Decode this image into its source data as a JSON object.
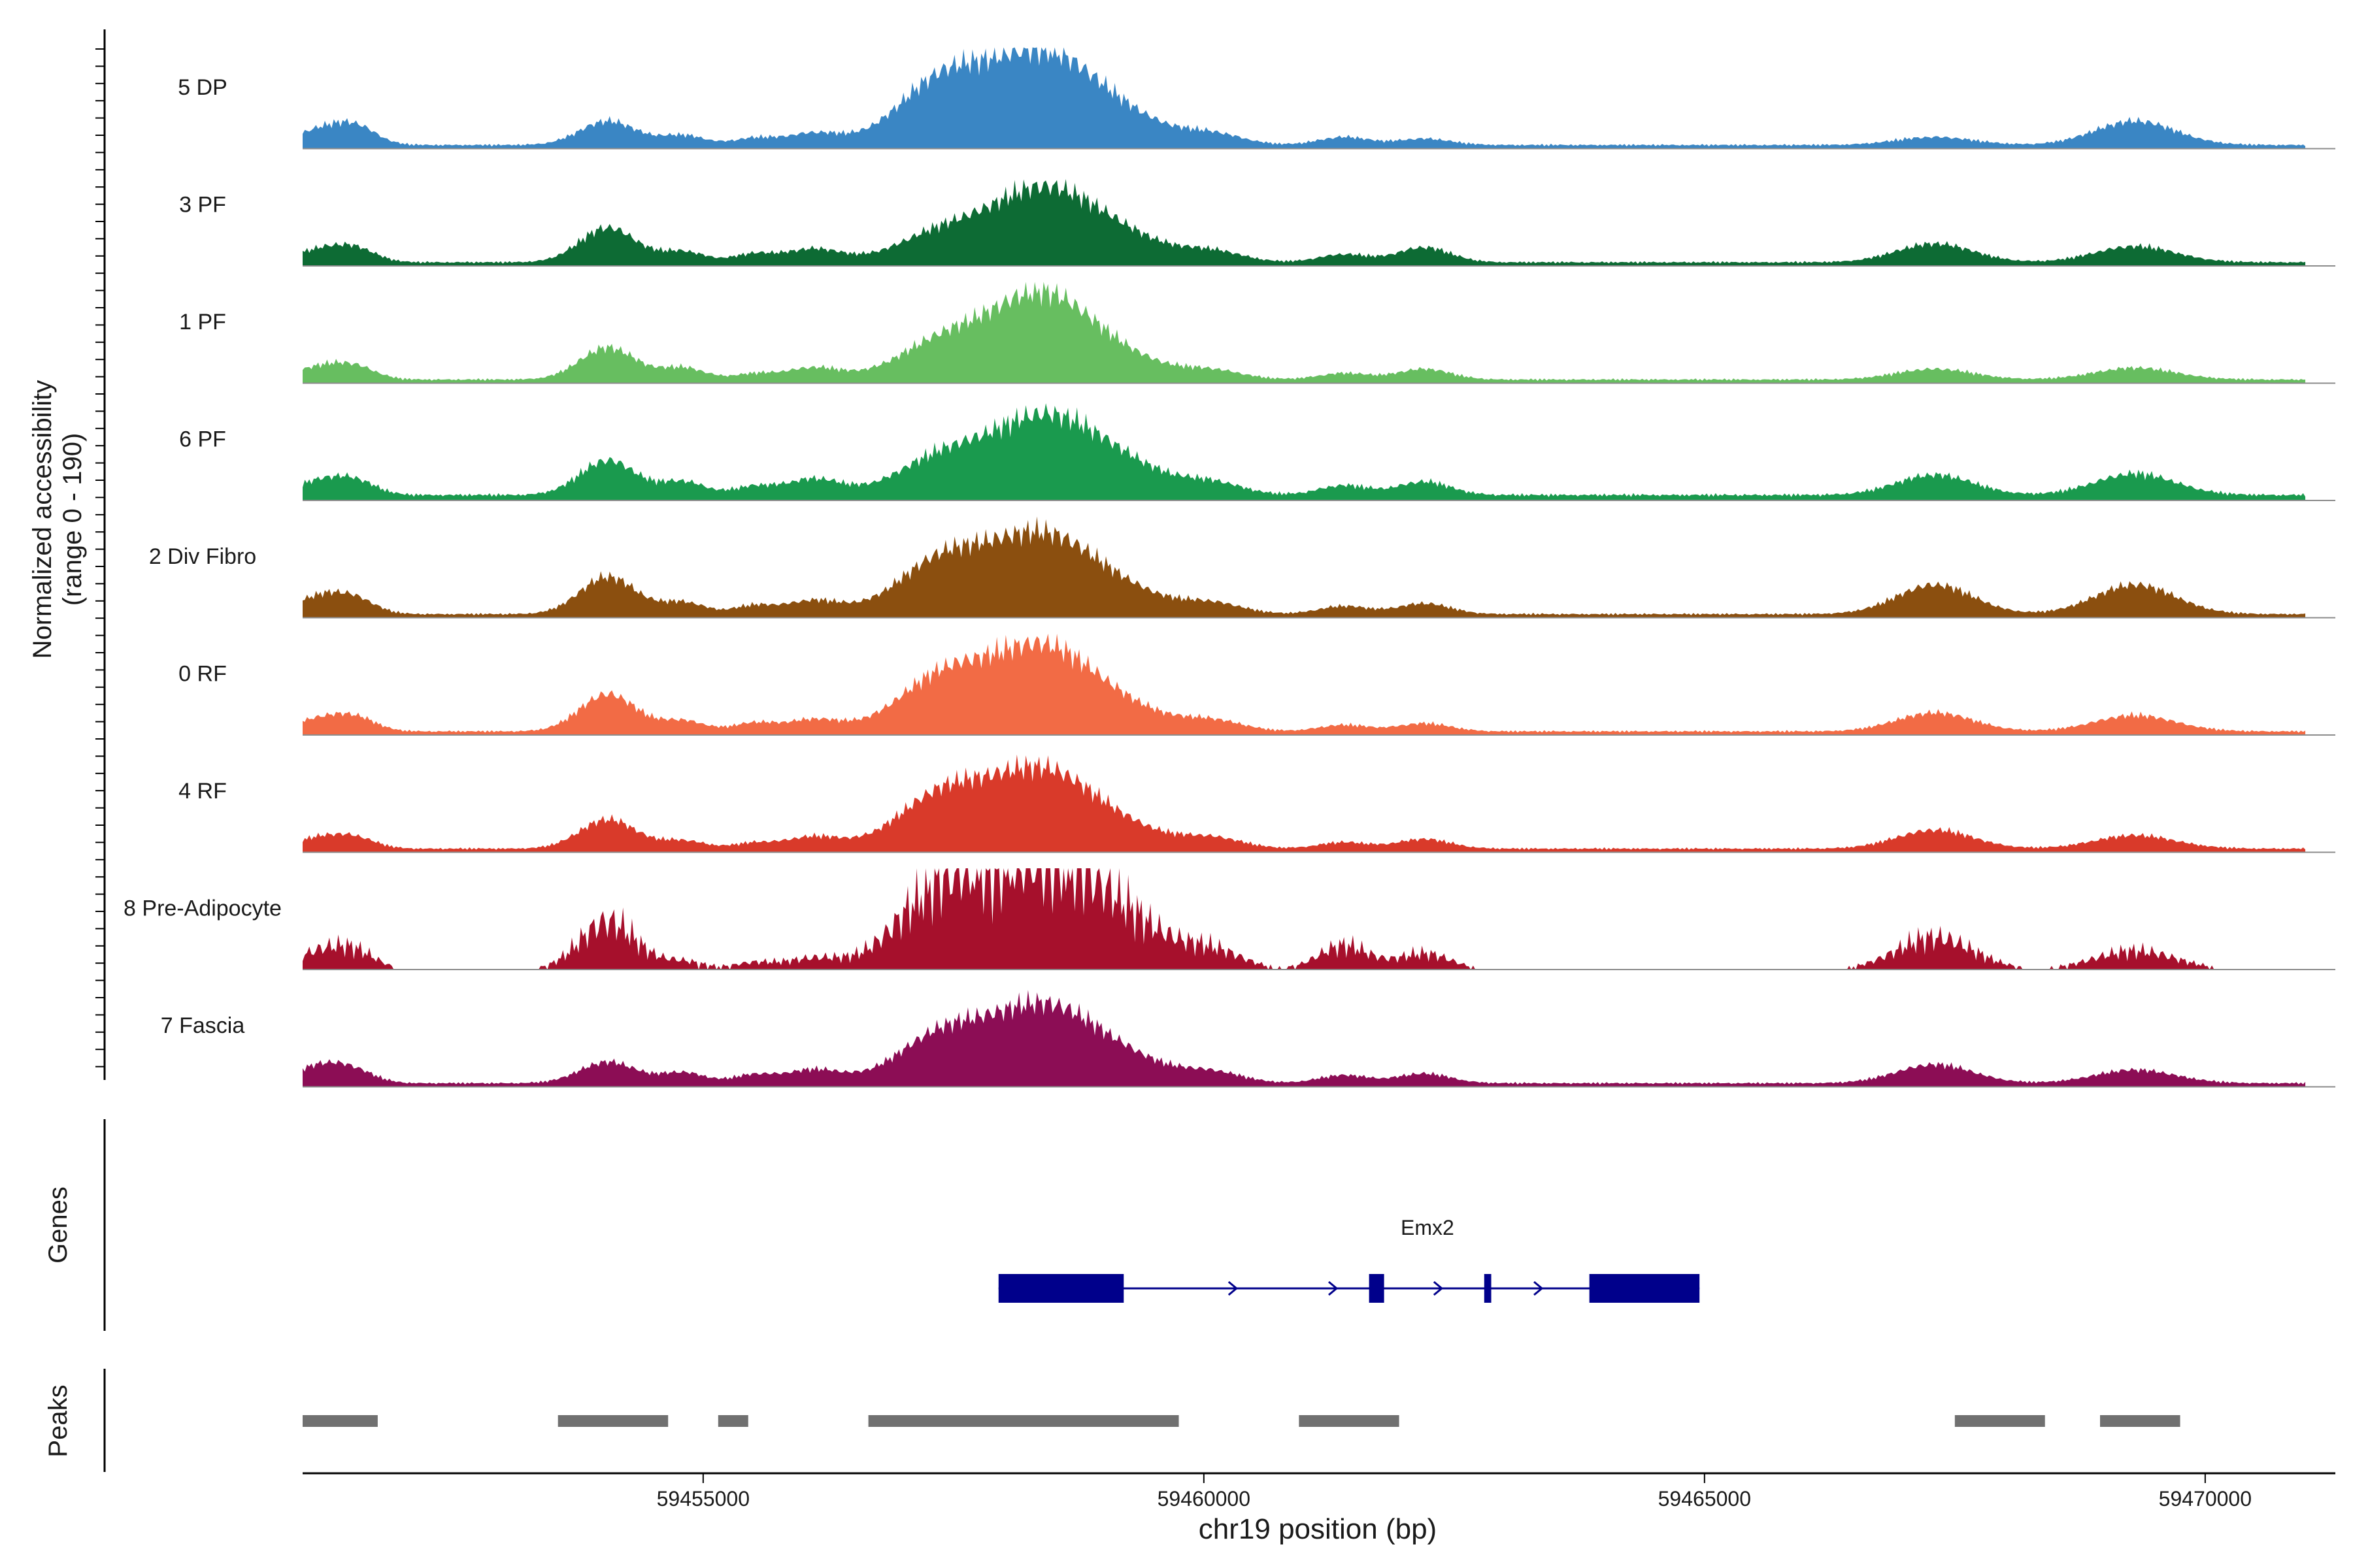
{
  "chart_data": {
    "type": "area",
    "title": "",
    "chromosome": "chr19",
    "xlabel": "chr19 position (bp)",
    "xlim": [
      59451000,
      59471300
    ],
    "xticks": [
      59455000,
      59460000,
      59465000,
      59470000
    ],
    "xtick_labels": [
      "59455000",
      "59460000",
      "59465000",
      "59470000"
    ],
    "coverage": {
      "ylabel_line1": "Normalized accessibility",
      "ylabel_line2": "(range 0 - 190)",
      "ylim": [
        0,
        190
      ],
      "peak_centers": [
        59451200,
        59451550,
        59454050,
        59454800,
        59455500,
        59456100,
        59457400,
        59458350,
        59459100,
        59460100,
        59461400,
        59462200,
        59467300,
        59469300
      ],
      "tracks": [
        {
          "name": "5 DP",
          "color": "#3a86c4",
          "baseline": 8,
          "heights": [
            30,
            28,
            45,
            18,
            12,
            22,
            120,
            150,
            55,
            18,
            15,
            12,
            15,
            45
          ]
        },
        {
          "name": "3 PF",
          "color": "#0d6b34",
          "baseline": 8,
          "heights": [
            25,
            20,
            65,
            20,
            15,
            25,
            55,
            120,
            50,
            18,
            15,
            28,
            35,
            30
          ]
        },
        {
          "name": "1 PF",
          "color": "#67be60",
          "baseline": 8,
          "heights": [
            25,
            18,
            60,
            22,
            10,
            22,
            70,
            145,
            40,
            15,
            12,
            20,
            20,
            22
          ]
        },
        {
          "name": "6 PF",
          "color": "#1a9a4e",
          "baseline": 12,
          "heights": [
            28,
            20,
            65,
            25,
            15,
            30,
            70,
            125,
            60,
            20,
            18,
            25,
            38,
            40
          ]
        },
        {
          "name": "2 Div Fibro",
          "color": "#8b4f0f",
          "baseline": 8,
          "heights": [
            35,
            20,
            70,
            22,
            15,
            25,
            100,
            130,
            45,
            18,
            15,
            20,
            55,
            55
          ]
        },
        {
          "name": "0 RF",
          "color": "#f26b45",
          "baseline": 8,
          "heights": [
            25,
            20,
            70,
            20,
            15,
            22,
            100,
            140,
            45,
            18,
            12,
            15,
            35,
            30
          ]
        },
        {
          "name": "4 RF",
          "color": "#d93a2a",
          "baseline": 8,
          "heights": [
            22,
            15,
            55,
            15,
            10,
            22,
            100,
            130,
            40,
            18,
            12,
            18,
            35,
            25
          ]
        },
        {
          "name": "8 Pre-Adipocyte",
          "color": "#a6102c",
          "baseline": 0,
          "heights": [
            35,
            25,
            90,
            15,
            12,
            20,
            150,
            160,
            95,
            30,
            45,
            30,
            60,
            35
          ]
        },
        {
          "name": "7 Fascia",
          "color": "#8c0d55",
          "baseline": 8,
          "heights": [
            35,
            15,
            40,
            20,
            15,
            25,
            90,
            125,
            50,
            18,
            15,
            18,
            35,
            25
          ]
        }
      ]
    },
    "genes": {
      "label": "Genes",
      "items": [
        {
          "name": "Emx2",
          "strand": "+",
          "start": 59457950,
          "end": 59464950,
          "exons": [
            [
              59457950,
              59459200
            ],
            [
              59461650,
              59461800
            ],
            [
              59462800,
              59462870
            ],
            [
              59463850,
              59464950
            ]
          ]
        }
      ]
    },
    "peaks": {
      "label": "Peaks",
      "regions": [
        [
          59451000,
          59451750
        ],
        [
          59453550,
          59454650
        ],
        [
          59455150,
          59455450
        ],
        [
          59456650,
          59459750
        ],
        [
          59460950,
          59461950
        ],
        [
          59467500,
          59468400
        ],
        [
          59468950,
          59469750
        ]
      ]
    },
    "colors": {
      "gene": "#00008b",
      "peak": "#707070",
      "baseline": "#8c8c8c",
      "axis": "#000000"
    }
  }
}
